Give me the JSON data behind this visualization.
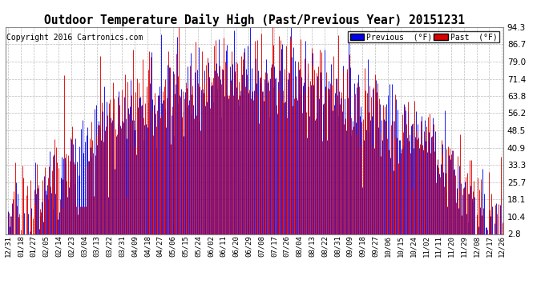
{
  "title": "Outdoor Temperature Daily High (Past/Previous Year) 20151231",
  "copyright": "Copyright 2016 Cartronics.com",
  "yticks": [
    2.8,
    10.4,
    18.1,
    25.7,
    33.3,
    40.9,
    48.5,
    56.2,
    63.8,
    71.4,
    79.0,
    86.7,
    94.3
  ],
  "ymin": 2.8,
  "ymax": 94.3,
  "legend_previous_label": "Previous  (°F)",
  "legend_past_label": "Past  (°F)",
  "previous_color": "#0000ee",
  "past_color": "#dd0000",
  "background_color": "#ffffff",
  "grid_color": "#bbbbbb",
  "title_fontsize": 10.5,
  "copyright_fontsize": 7,
  "n_points": 366,
  "xtick_labels": [
    "12/31",
    "01/18",
    "01/27",
    "02/05",
    "02/14",
    "02/23",
    "03/04",
    "03/13",
    "03/22",
    "03/31",
    "04/09",
    "04/18",
    "04/27",
    "05/06",
    "05/15",
    "05/24",
    "06/02",
    "06/11",
    "06/20",
    "06/29",
    "07/08",
    "07/17",
    "07/26",
    "08/04",
    "08/13",
    "08/22",
    "08/31",
    "09/09",
    "09/18",
    "09/27",
    "10/06",
    "10/15",
    "10/24",
    "11/02",
    "11/11",
    "11/20",
    "11/29",
    "12/08",
    "12/17",
    "12/26"
  ]
}
